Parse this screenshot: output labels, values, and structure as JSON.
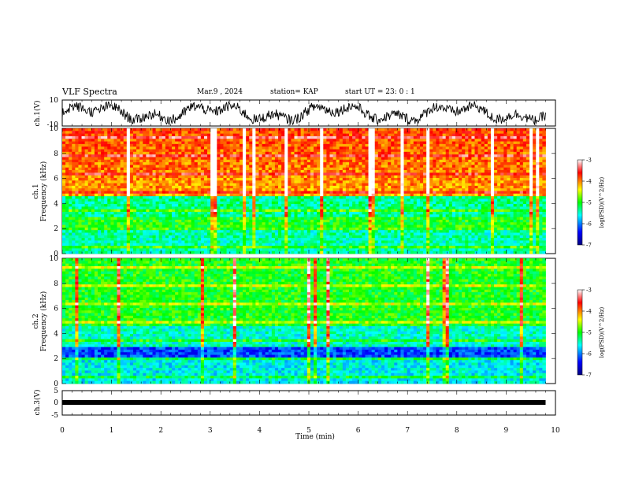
{
  "header": {
    "title": "VLF Spectra",
    "date": "Mar.9 , 2024",
    "station": "station= KAP",
    "start_time": "start UT = 23: 0 : 1"
  },
  "chart_data": [
    {
      "type": "line",
      "panel": "ch1-waveform",
      "ylabel": "ch.1(V)",
      "yticks": [
        "10",
        "-10"
      ],
      "ylim": [
        -10,
        10
      ],
      "xlim": [
        0,
        10
      ]
    },
    {
      "type": "heatmap",
      "panel": "ch1-spectrogram",
      "ylabel_top": "ch.1",
      "ylabel": "Frequency (kHz)",
      "yticks": [
        "0",
        "2",
        "4",
        "6",
        "8",
        "10"
      ],
      "ylim": [
        0,
        10
      ],
      "xlim": [
        0,
        9.8
      ],
      "colorbar": {
        "label": "log(PSD)(V^2/Hz)",
        "ticks": [
          "-3",
          "-4",
          "-5",
          "-6",
          "-7"
        ],
        "range": [
          -7,
          -3
        ]
      }
    },
    {
      "type": "heatmap",
      "panel": "ch2-spectrogram",
      "ylabel_top": "ch.2",
      "ylabel": "Frequency (kHz)",
      "yticks": [
        "0",
        "2",
        "4",
        "6",
        "8",
        "10"
      ],
      "ylim": [
        0,
        10
      ],
      "xlim": [
        0,
        9.8
      ],
      "colorbar": {
        "label": "log(PSD)(V^2/Hz)",
        "ticks": [
          "-3",
          "-4",
          "-5",
          "-6",
          "-7"
        ],
        "range": [
          -7,
          -3
        ]
      }
    },
    {
      "type": "line",
      "panel": "ch3",
      "ylabel": "ch.3(V)",
      "yticks": [
        "5",
        "0",
        "-5"
      ],
      "ylim": [
        -5,
        5
      ],
      "value": -0.5,
      "xlim": [
        0,
        9.8
      ]
    }
  ],
  "xaxis": {
    "label": "Time (min)",
    "ticks": [
      "0",
      "1",
      "2",
      "3",
      "4",
      "5",
      "6",
      "7",
      "8",
      "9",
      "10"
    ],
    "range": [
      0,
      10
    ]
  }
}
